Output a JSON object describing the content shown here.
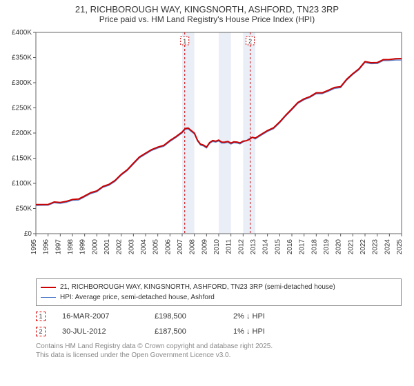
{
  "title_line1": "21, RICHBOROUGH WAY, KINGSNORTH, ASHFORD, TN23 3RP",
  "title_line2": "Price paid vs. HM Land Registry's House Price Index (HPI)",
  "chart": {
    "type": "line",
    "background_color": "#ffffff",
    "plot_border_color": "#666666",
    "grid_color": "#d7d7d7",
    "shade_band_color": "#eaeef7",
    "x": {
      "min": 1995,
      "max": 2025,
      "tick_step": 1,
      "label_fontsize": 10,
      "tick_color": "#555"
    },
    "y": {
      "min": 0,
      "max": 400000,
      "tick_step": 50000,
      "label_prefix": "£",
      "label_suffix": "K",
      "label_fontsize": 10
    },
    "shade_bands": [
      [
        2007.0,
        2008.0
      ],
      [
        2010.0,
        2011.0
      ],
      [
        2012.0,
        2013.0
      ]
    ],
    "event_marker_color": "#d00000",
    "events": [
      {
        "n": "1",
        "year": 2007.21,
        "date": "16-MAR-2007",
        "price": 198500,
        "price_str": "£198,500",
        "hpi_str": "2% ↓ HPI"
      },
      {
        "n": "2",
        "year": 2012.58,
        "date": "30-JUL-2012",
        "price": 187500,
        "price_str": "£187,500",
        "hpi_str": "1% ↓ HPI"
      }
    ],
    "series": [
      {
        "name": "21, RICHBOROUGH WAY, KINGSNORTH, ASHFORD, TN23 3RP (semi-detached house)",
        "color": "#cc0000",
        "line_width": 2,
        "data": [
          [
            1995,
            58000
          ],
          [
            1996,
            58000
          ],
          [
            1997,
            62000
          ],
          [
            1998,
            68000
          ],
          [
            1999,
            75000
          ],
          [
            2000,
            85000
          ],
          [
            2001,
            98000
          ],
          [
            2002,
            118000
          ],
          [
            2003,
            140000
          ],
          [
            2004,
            160000
          ],
          [
            2005,
            172000
          ],
          [
            2006,
            185000
          ],
          [
            2007,
            202000
          ],
          [
            2007.5,
            210000
          ],
          [
            2008,
            200000
          ],
          [
            2008.5,
            178000
          ],
          [
            2009,
            172000
          ],
          [
            2009.5,
            185000
          ],
          [
            2010,
            186000
          ],
          [
            2010.5,
            182000
          ],
          [
            2011,
            180000
          ],
          [
            2011.5,
            182000
          ],
          [
            2012,
            184000
          ],
          [
            2012.5,
            187000
          ],
          [
            2013,
            190000
          ],
          [
            2014,
            205000
          ],
          [
            2015,
            222000
          ],
          [
            2016,
            248000
          ],
          [
            2017,
            268000
          ],
          [
            2018,
            280000
          ],
          [
            2019,
            285000
          ],
          [
            2020,
            292000
          ],
          [
            2021,
            318000
          ],
          [
            2022,
            342000
          ],
          [
            2023,
            340000
          ],
          [
            2024,
            346000
          ],
          [
            2025,
            348000
          ]
        ]
      },
      {
        "name": "HPI: Average price, semi-detached house, Ashford",
        "color": "#4a78c8",
        "line_width": 1.2,
        "data": [
          [
            1995,
            56000
          ],
          [
            1996,
            56500
          ],
          [
            1997,
            60000
          ],
          [
            1998,
            66000
          ],
          [
            1999,
            73000
          ],
          [
            2000,
            83000
          ],
          [
            2001,
            96000
          ],
          [
            2002,
            116000
          ],
          [
            2003,
            138000
          ],
          [
            2004,
            158000
          ],
          [
            2005,
            170000
          ],
          [
            2006,
            183000
          ],
          [
            2007,
            200000
          ],
          [
            2007.5,
            208000
          ],
          [
            2008,
            198000
          ],
          [
            2008.5,
            176000
          ],
          [
            2009,
            170000
          ],
          [
            2009.5,
            183000
          ],
          [
            2010,
            184000
          ],
          [
            2010.5,
            180000
          ],
          [
            2011,
            178000
          ],
          [
            2011.5,
            180000
          ],
          [
            2012,
            182000
          ],
          [
            2012.5,
            189000
          ],
          [
            2013,
            188000
          ],
          [
            2014,
            203000
          ],
          [
            2015,
            220000
          ],
          [
            2016,
            246000
          ],
          [
            2017,
            266000
          ],
          [
            2018,
            278000
          ],
          [
            2019,
            283000
          ],
          [
            2020,
            290000
          ],
          [
            2021,
            316000
          ],
          [
            2022,
            340000
          ],
          [
            2023,
            338000
          ],
          [
            2024,
            344000
          ],
          [
            2025,
            345000
          ]
        ]
      }
    ]
  },
  "legend_title_0": "21, RICHBOROUGH WAY, KINGSNORTH, ASHFORD, TN23 3RP (semi-detached house)",
  "legend_title_1": "HPI: Average price, semi-detached house, Ashford",
  "footer_line1": "Contains HM Land Registry data © Crown copyright and database right 2025.",
  "footer_line2": "This data is licensed under the Open Government Licence v3.0."
}
